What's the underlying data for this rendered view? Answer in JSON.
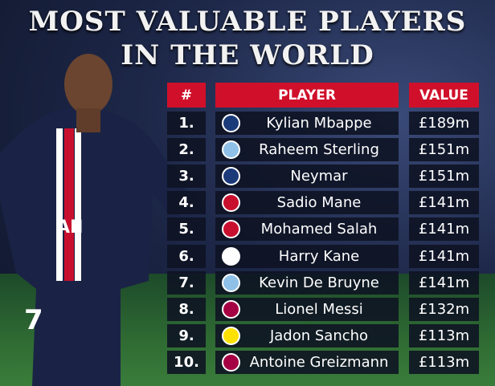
{
  "title": {
    "line1": "MOST VALUABLE PLAYERS",
    "line2": "IN THE WORLD"
  },
  "table": {
    "headers": [
      "#",
      "PLAYER",
      "VALUE"
    ],
    "rows": [
      {
        "rank": "1.",
        "player": "Kylian Mbappe",
        "value": "£189m",
        "club_icon": "psg-crest-icon",
        "club_color": "#1b3a7a"
      },
      {
        "rank": "2.",
        "player": "Raheem Sterling",
        "value": "£151m",
        "club_icon": "man-city-crest-icon",
        "club_color": "#8fc0e8"
      },
      {
        "rank": "3.",
        "player": "Neymar",
        "value": "£151m",
        "club_icon": "psg-crest-icon",
        "club_color": "#1b3a7a"
      },
      {
        "rank": "4.",
        "player": "Sadio Mane",
        "value": "£141m",
        "club_icon": "liverpool-crest-icon",
        "club_color": "#c8102e"
      },
      {
        "rank": "5.",
        "player": "Mohamed Salah",
        "value": "£141m",
        "club_icon": "liverpool-crest-icon",
        "club_color": "#c8102e"
      },
      {
        "rank": "6.",
        "player": "Harry Kane",
        "value": "£141m",
        "club_icon": "tottenham-crest-icon",
        "club_color": "#ffffff"
      },
      {
        "rank": "7.",
        "player": "Kevin De Bruyne",
        "value": "£141m",
        "club_icon": "man-city-crest-icon",
        "club_color": "#8fc0e8"
      },
      {
        "rank": "8.",
        "player": "Lionel Messi",
        "value": "£132m",
        "club_icon": "barcelona-crest-icon",
        "club_color": "#a50044"
      },
      {
        "rank": "9.",
        "player": "Jadon Sancho",
        "value": "£113m",
        "club_icon": "dortmund-crest-icon",
        "club_color": "#fde100"
      },
      {
        "rank": "10.",
        "player": "Antoine Greizmann",
        "value": "£113m",
        "club_icon": "barcelona-crest-icon",
        "club_color": "#a50044"
      }
    ]
  },
  "colors": {
    "header": "#d0102a",
    "row": "#0e1222"
  }
}
